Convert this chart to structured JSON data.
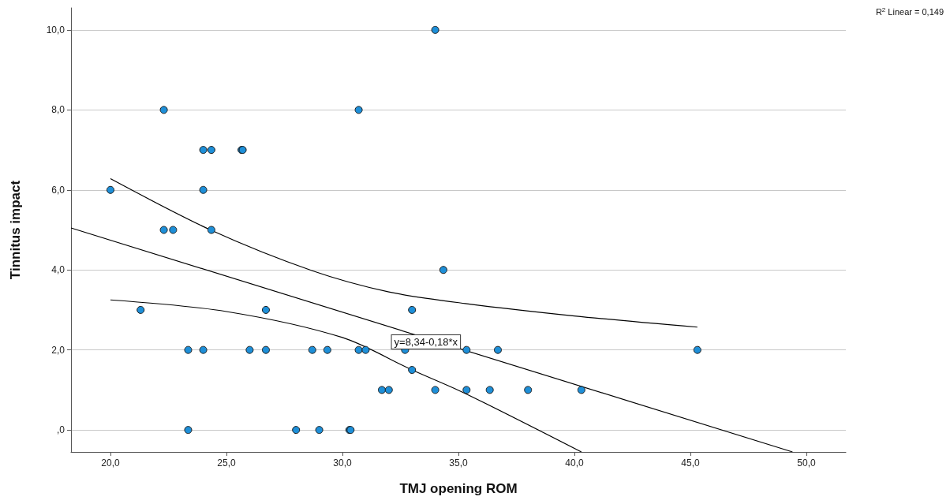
{
  "chart_data": {
    "type": "scatter",
    "xlabel": "TMJ opening ROM",
    "ylabel": "Tinnitus impact",
    "xlim": [
      18.3,
      51.7
    ],
    "ylim": [
      -0.55,
      10.55
    ],
    "xticks": [
      {
        "value": 20,
        "label": "20,0"
      },
      {
        "value": 25,
        "label": "25,0"
      },
      {
        "value": 30,
        "label": "30,0"
      },
      {
        "value": 35,
        "label": "35,0"
      },
      {
        "value": 40,
        "label": "40,0"
      },
      {
        "value": 45,
        "label": "45,0"
      },
      {
        "value": 50,
        "label": "50,0"
      }
    ],
    "yticks": [
      {
        "value": 0,
        "label": ",0"
      },
      {
        "value": 2,
        "label": "2,0"
      },
      {
        "value": 4,
        "label": "4,0"
      },
      {
        "value": 6,
        "label": "6,0"
      },
      {
        "value": 8,
        "label": "8,0"
      },
      {
        "value": 10,
        "label": "10,0"
      }
    ],
    "grid": "y",
    "marker": "circle",
    "series": [
      {
        "color": "#1e8fd8",
        "x": [
          34.0,
          22.3,
          30.7,
          24.0,
          24.35,
          25.65,
          25.7,
          20.0,
          24.0,
          22.3,
          22.7,
          24.35,
          34.35,
          21.3,
          26.7,
          33.0,
          23.35,
          24.0,
          26.0,
          26.7,
          28.7,
          29.35,
          30.7,
          31.0,
          32.7,
          35.35,
          36.7,
          45.3,
          33.0,
          31.7,
          32.0,
          34.0,
          35.35,
          36.35,
          38.0,
          40.3,
          23.35,
          28.0,
          29.0,
          30.3,
          30.35
        ],
        "values": [
          10,
          8,
          8,
          7,
          7,
          7,
          7,
          6,
          6,
          5,
          5,
          5,
          4,
          3,
          3,
          3,
          2,
          2,
          2,
          2,
          2,
          2,
          2,
          2,
          2,
          2,
          2,
          2,
          1.5,
          1,
          1,
          1,
          1,
          1,
          1,
          1,
          0,
          0,
          0,
          0,
          0
        ]
      },
      {
        "type": "line",
        "color": "#000000",
        "marker": "none",
        "x": [
          18.3,
          49.4
        ],
        "values": [
          5.05,
          -0.55
        ]
      },
      {
        "type": "line",
        "color": "#000000",
        "marker": "none",
        "x": [
          20,
          24.35,
          28.7,
          32,
          35.3,
          40,
          45.3
        ],
        "values": [
          6.28,
          4.99,
          3.98,
          3.45,
          3.16,
          2.85,
          2.57
        ]
      },
      {
        "type": "line",
        "color": "#000000",
        "marker": "none",
        "x": [
          20,
          25,
          30,
          33,
          35.3,
          40.3
        ],
        "values": [
          3.25,
          2.96,
          2.31,
          1.5,
          0.91,
          -0.55
        ]
      }
    ],
    "annotations": [
      {
        "text": "y=8,34-0,18*x",
        "x": 33.6,
        "y": 2.2
      },
      "R$^{2}$ Linear = 0,149"
    ]
  }
}
